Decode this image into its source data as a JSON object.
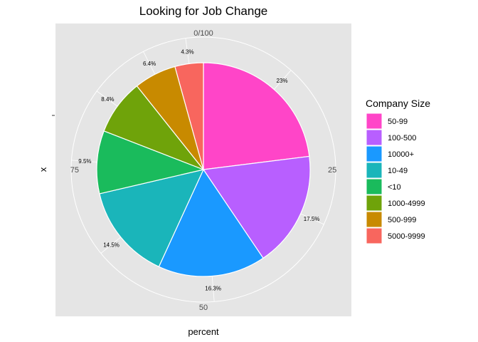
{
  "chart_data": {
    "type": "pie",
    "title": "Looking for Job Change",
    "xlabel": "percent",
    "ylabel": "x",
    "y_tick_mark": "-",
    "radial_ticks": [
      "0/100",
      "25",
      "50",
      "75"
    ],
    "legend_title": "Company Size",
    "legend_position": "right",
    "grid": true,
    "slices": [
      {
        "label": "50-99",
        "value": 23,
        "value_label": "23%",
        "color": "#FF45C8"
      },
      {
        "label": "100-500",
        "value": 17.5,
        "value_label": "17.5%",
        "color": "#B85FFF"
      },
      {
        "label": "10000+",
        "value": 16.3,
        "value_label": "16.3%",
        "color": "#1A99FF"
      },
      {
        "label": "10-49",
        "value": 14.5,
        "value_label": "14.5%",
        "color": "#1AB5BA"
      },
      {
        "label": "<10",
        "value": 9.5,
        "value_label": "9.5%",
        "color": "#1ABB5C"
      },
      {
        "label": "1000-4999",
        "value": 8.4,
        "value_label": "8.4%",
        "color": "#6FA30A"
      },
      {
        "label": "500-999",
        "value": 6.4,
        "value_label": "6.4%",
        "color": "#C88A00"
      },
      {
        "label": "5000-9999",
        "value": 4.3,
        "value_label": "4.3%",
        "color": "#F8665E"
      }
    ]
  }
}
